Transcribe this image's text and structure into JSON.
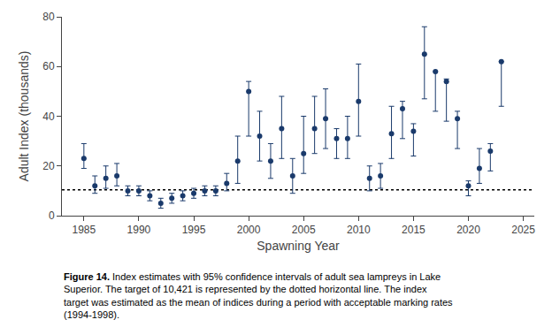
{
  "chart_data": {
    "type": "scatter",
    "x": [
      1985,
      1986,
      1987,
      1988,
      1989,
      1990,
      1991,
      1992,
      1993,
      1994,
      1995,
      1996,
      1997,
      1998,
      1999,
      2000,
      2001,
      2002,
      2003,
      2004,
      2005,
      2006,
      2007,
      2008,
      2009,
      2010,
      2011,
      2012,
      2013,
      2014,
      2015,
      2016,
      2017,
      2018,
      2019,
      2020,
      2021,
      2022,
      2023
    ],
    "values": [
      23,
      12,
      15,
      16,
      10,
      10,
      8,
      5,
      7,
      8,
      9,
      10,
      10,
      13,
      22,
      50,
      32,
      22,
      35,
      16,
      25,
      35,
      39,
      31,
      31,
      46,
      15,
      16,
      33,
      43,
      34,
      65,
      58,
      54,
      39,
      12,
      19,
      26,
      62
    ],
    "error_minus": [
      4,
      3,
      4,
      4,
      2,
      2,
      2,
      2,
      2,
      2,
      2,
      2,
      2,
      3,
      9,
      18,
      10,
      7,
      12,
      7,
      8,
      10,
      12,
      8,
      8,
      14,
      5,
      5,
      10,
      12,
      10,
      18,
      16,
      16,
      12,
      4,
      6,
      8,
      18
    ],
    "error_plus": [
      6,
      4,
      5,
      5,
      2,
      2,
      2,
      2,
      2,
      2,
      2,
      2,
      2,
      4,
      10,
      4,
      10,
      7,
      13,
      7,
      15,
      13,
      12,
      4,
      9,
      15,
      5,
      5,
      11,
      3,
      3,
      11,
      0,
      1,
      3,
      2,
      8,
      3,
      0
    ],
    "color": "#1a3a6b",
    "marker": "circle",
    "hline": {
      "y": 10.421,
      "color": "black",
      "line_style": "dot"
    },
    "xlabel": "Spawning Year",
    "ylabel": "Adult Index (thousands)",
    "xlim": [
      1983,
      2026
    ],
    "xticks": [
      1985,
      1990,
      1995,
      2000,
      2005,
      2010,
      2015,
      2020,
      2025
    ],
    "ylim": [
      0,
      80
    ],
    "yticks": [
      0,
      20,
      40,
      60,
      80
    ],
    "grid": false,
    "caption": {
      "bold": "Figure 14.",
      "text": " Index estimates with 95% confidence intervals of adult sea lampreys in Lake Superior. The target of 10,421 is represented by the dotted horizontal line. The index target was estimated as the mean of indices during a period with acceptable marking rates (1994-1998)."
    }
  }
}
